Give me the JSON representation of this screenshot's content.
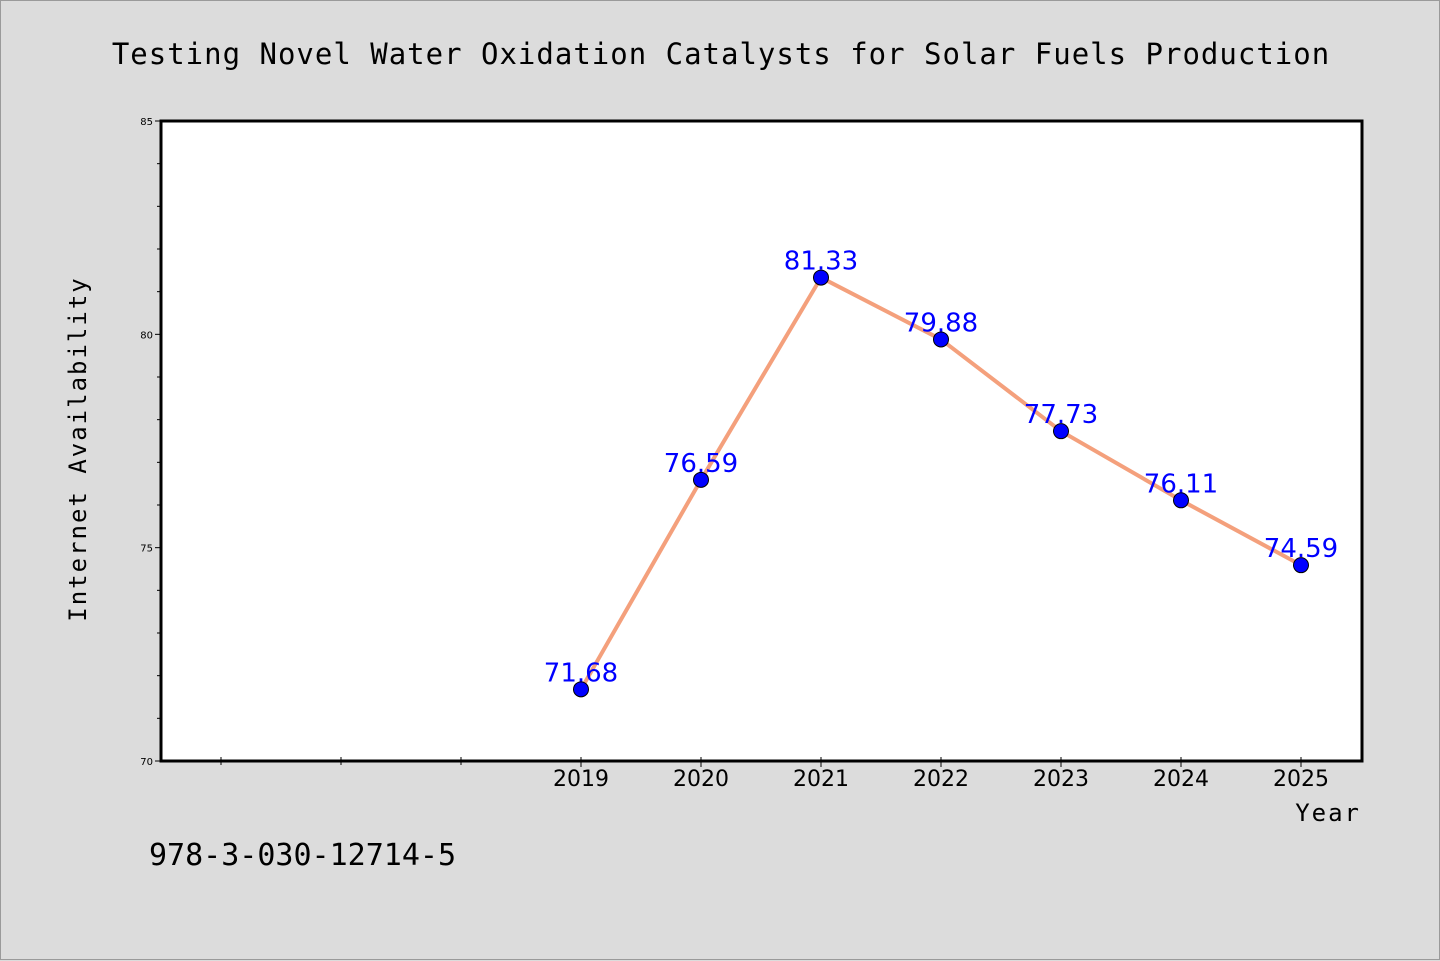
{
  "chart_data": {
    "type": "line",
    "title": "Testing Novel Water Oxidation Catalysts for Solar Fuels Production",
    "xlabel": "Year",
    "ylabel": "Internet Availability",
    "categories": [
      "2019",
      "2020",
      "2021",
      "2022",
      "2023",
      "2024",
      "2025"
    ],
    "series": [
      {
        "values": [
          71.68,
          76.59,
          81.33,
          79.88,
          77.73,
          76.11,
          74.59
        ]
      }
    ],
    "data_labels": [
      "71.68",
      "76.59",
      "81.33",
      "79.88",
      "77.73",
      "76.11",
      "74.59"
    ],
    "ylim": [
      70,
      85
    ],
    "yticks": [
      "70",
      "75",
      "80",
      "85"
    ],
    "grid": false,
    "line_color": "#f4a07c",
    "marker_color": "#0000ff",
    "label_color": "#0000ff"
  },
  "footer": {
    "isbn": "978-3-030-12714-5"
  }
}
